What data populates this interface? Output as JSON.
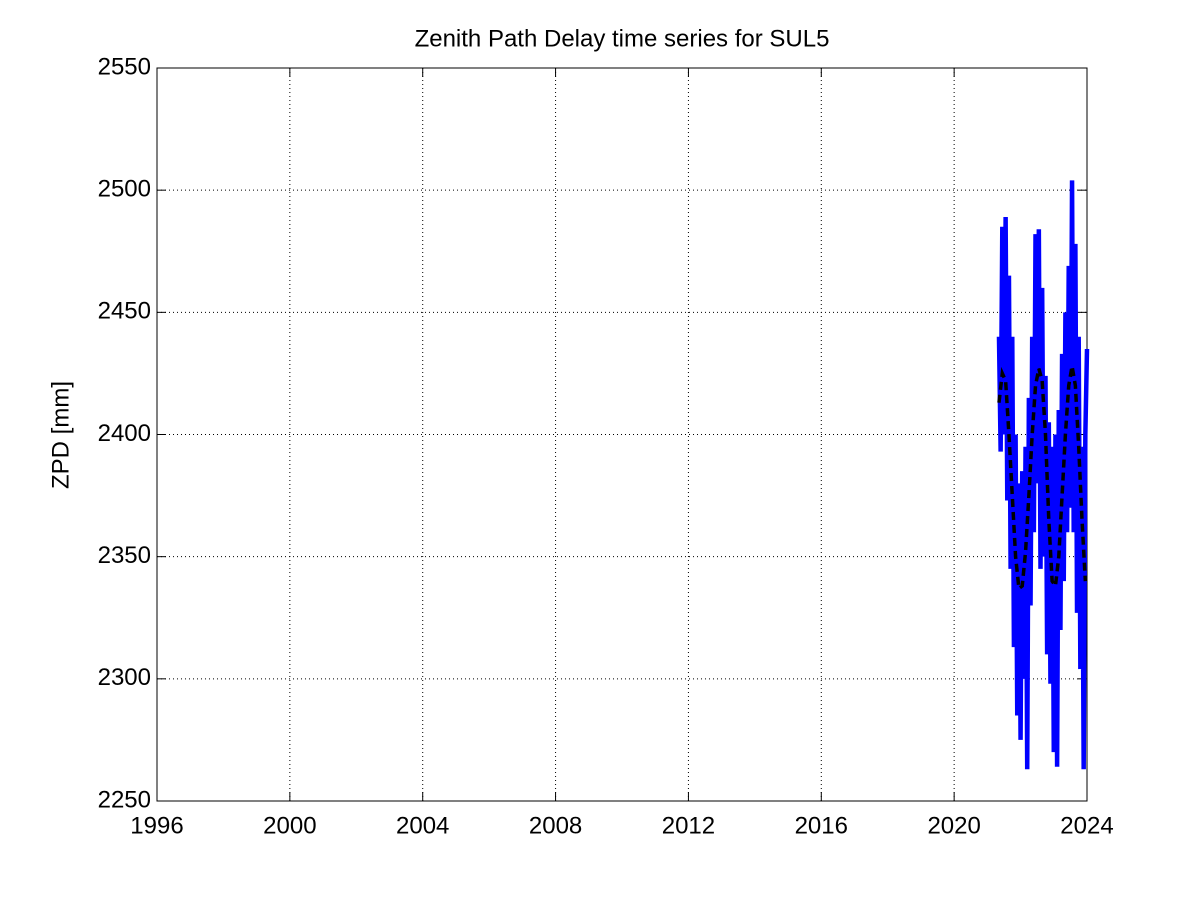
{
  "chart_data": {
    "type": "line",
    "title": "Zenith Path Delay time series for SUL5",
    "ylabel": "ZPD [mm]",
    "xlim": [
      1996,
      2024
    ],
    "xticks": [
      1996,
      2000,
      2004,
      2008,
      2012,
      2016,
      2020,
      2024
    ],
    "ylim": [
      2250,
      2550
    ],
    "yticks": [
      2250,
      2300,
      2350,
      2400,
      2450,
      2500,
      2550
    ],
    "grid": true,
    "series": [
      {
        "color": "#0000ff",
        "dashed": false,
        "x": [
          2021.35,
          2021.4,
          2021.45,
          2021.5,
          2021.55,
          2021.6,
          2021.65,
          2021.7,
          2021.75,
          2021.8,
          2021.85,
          2021.9,
          2021.95,
          2022.0,
          2022.05,
          2022.1,
          2022.15,
          2022.2,
          2022.25,
          2022.3,
          2022.35,
          2022.4,
          2022.45,
          2022.5,
          2022.55,
          2022.6,
          2022.65,
          2022.7,
          2022.75,
          2022.8,
          2022.85,
          2022.9,
          2022.95,
          2023.0,
          2023.05,
          2023.1,
          2023.15,
          2023.2,
          2023.25,
          2023.3,
          2023.35,
          2023.4,
          2023.45,
          2023.5,
          2023.55,
          2023.6,
          2023.65,
          2023.7,
          2023.75,
          2023.8,
          2023.85,
          2023.9,
          2023.95,
          2024.0
        ],
        "values": [
          2440,
          2393,
          2485,
          2400,
          2489,
          2373,
          2465,
          2345,
          2440,
          2313,
          2400,
          2285,
          2380,
          2275,
          2385,
          2300,
          2395,
          2263,
          2415,
          2330,
          2440,
          2360,
          2482,
          2380,
          2484,
          2345,
          2460,
          2350,
          2424,
          2310,
          2405,
          2298,
          2395,
          2270,
          2400,
          2264,
          2410,
          2320,
          2433,
          2340,
          2450,
          2360,
          2469,
          2370,
          2504,
          2360,
          2478,
          2327,
          2440,
          2304,
          2395,
          2263,
          2400,
          2435
        ]
      },
      {
        "color": "#000000",
        "dashed": true,
        "x": [
          2021.35,
          2021.45,
          2021.55,
          2021.65,
          2021.75,
          2021.85,
          2021.95,
          2022.05,
          2022.15,
          2022.25,
          2022.35,
          2022.45,
          2022.55,
          2022.65,
          2022.75,
          2022.85,
          2022.95,
          2023.05,
          2023.15,
          2023.25,
          2023.35,
          2023.45,
          2023.55,
          2023.65,
          2023.75,
          2023.85,
          2023.95
        ],
        "values": [
          2413,
          2425,
          2422,
          2400,
          2375,
          2350,
          2337,
          2338,
          2352,
          2375,
          2400,
          2420,
          2427,
          2422,
          2400,
          2365,
          2340,
          2338,
          2350,
          2375,
          2400,
          2420,
          2428,
          2420,
          2395,
          2365,
          2340
        ]
      }
    ]
  }
}
